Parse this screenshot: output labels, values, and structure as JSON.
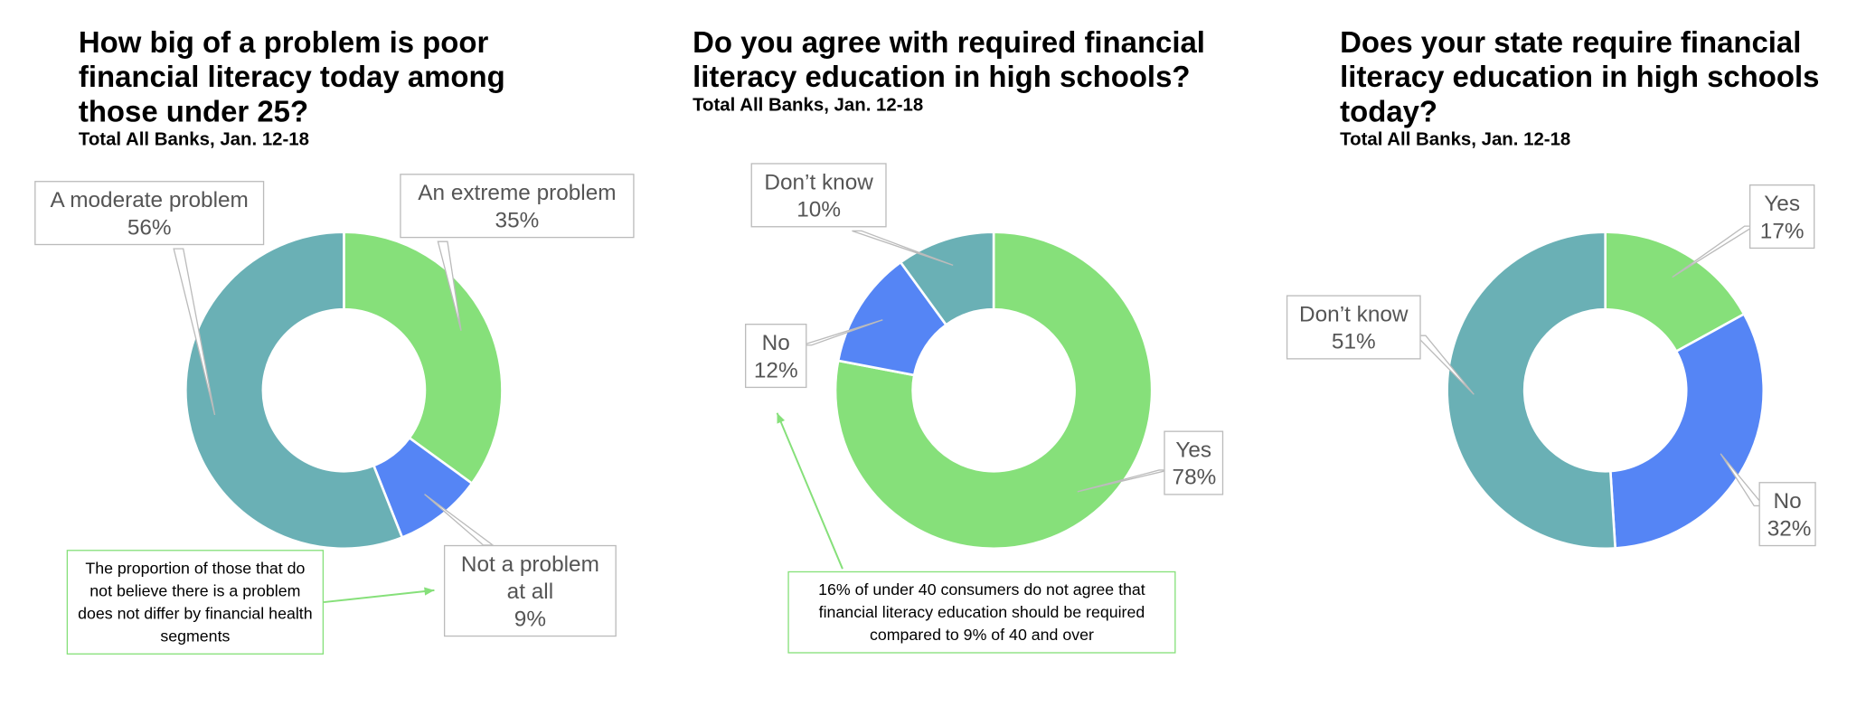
{
  "chart_data": [
    {
      "type": "donut",
      "title": "How big of a problem is poor financial literacy today among those under 25?",
      "subtitle": "Total All Banks, Jan. 12-18",
      "categories": [
        "An extreme problem",
        "Not a problem at all",
        "A moderate problem"
      ],
      "values": [
        35,
        9,
        56
      ],
      "value_labels": [
        "35%",
        "9%",
        "56%"
      ],
      "colors": [
        "#86e07a",
        "#5585f5",
        "#6ab0b5"
      ],
      "annotation": "The proportion of those that do not believe there is a problem does not differ by financial health segments"
    },
    {
      "type": "donut",
      "title": "Do you agree with required financial literacy education in high schools?",
      "subtitle": "Total All Banks, Jan. 12-18",
      "categories": [
        "Yes",
        "No",
        "Don’t know"
      ],
      "values": [
        78,
        12,
        10
      ],
      "value_labels": [
        "78%",
        "12%",
        "10%"
      ],
      "colors": [
        "#86e07a",
        "#5585f5",
        "#6ab0b5"
      ],
      "annotation": "16% of under 40 consumers do not agree that financial literacy education should be required compared to 9% of 40 and over"
    },
    {
      "type": "donut",
      "title": "Does your state require financial literacy education in high schools today?",
      "subtitle": "Total All Banks, Jan. 12-18",
      "categories": [
        "Yes",
        "No",
        "Don’t know"
      ],
      "values": [
        17,
        32,
        51
      ],
      "value_labels": [
        "17%",
        "32%",
        "51%"
      ],
      "colors": [
        "#86e07a",
        "#5585f5",
        "#6ab0b5"
      ]
    }
  ]
}
